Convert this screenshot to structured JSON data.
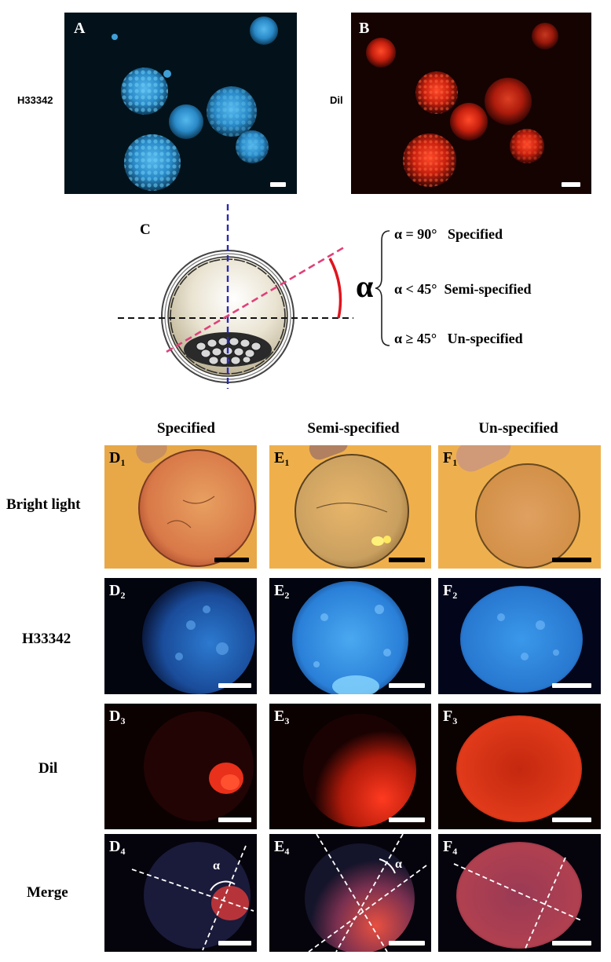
{
  "top": {
    "left_row_label": "H33342",
    "right_row_label": "Dil",
    "panel_a_label": "A",
    "panel_b_label": "B"
  },
  "diagram": {
    "label": "C",
    "alpha_symbol": "α",
    "rules": [
      "α = 90°   Specified",
      "α < 45°  Semi-specified",
      "α ≥ 45°   Un-specified"
    ]
  },
  "grid": {
    "columns": [
      "Specified",
      "Semi-specified",
      "Un-specified"
    ],
    "rows": [
      "Bright light",
      "H33342",
      "Dil",
      "Merge"
    ],
    "panel_letters": [
      "D",
      "E",
      "F"
    ],
    "angle_label": "α"
  },
  "colors": {
    "hoechst": "#2f8fd8",
    "dil": "#e0301c",
    "bright_bg": "#e9a94a",
    "pink_dash": "#e0407a",
    "blue_dash": "#2a2ab0",
    "arc_red": "#e0141e"
  }
}
